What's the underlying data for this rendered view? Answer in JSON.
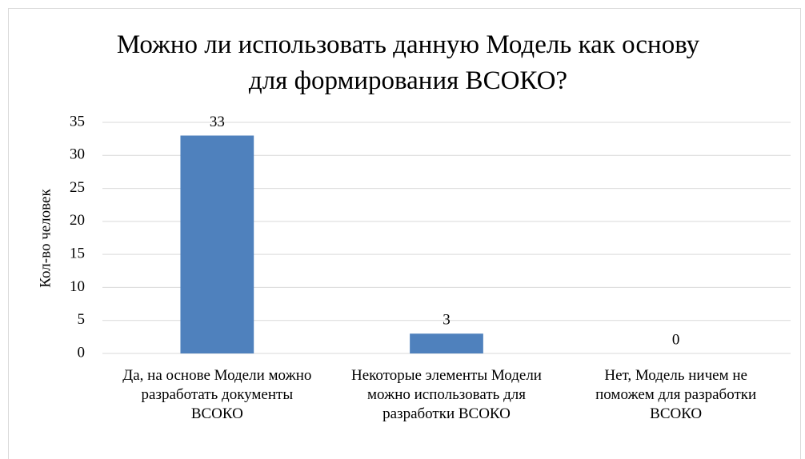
{
  "chart_data": {
    "type": "bar",
    "title": "Можно ли использовать данную Модель как основу для формирования ВСОКО?",
    "y_label": "Кол-во человек",
    "categories": [
      "Да, на основе Модели можно разработать документы ВСОКО",
      "Некоторые элементы Модели можно использовать для разработки ВСОКО",
      "Нет, Модель ничем не поможем для разработки ВСОКО"
    ],
    "values": [
      33,
      3,
      0
    ],
    "color": "#4f81bd",
    "ylim": [
      0,
      35
    ],
    "yticks": [
      0,
      5,
      10,
      15,
      20,
      25,
      30,
      35
    ],
    "grid": true
  }
}
